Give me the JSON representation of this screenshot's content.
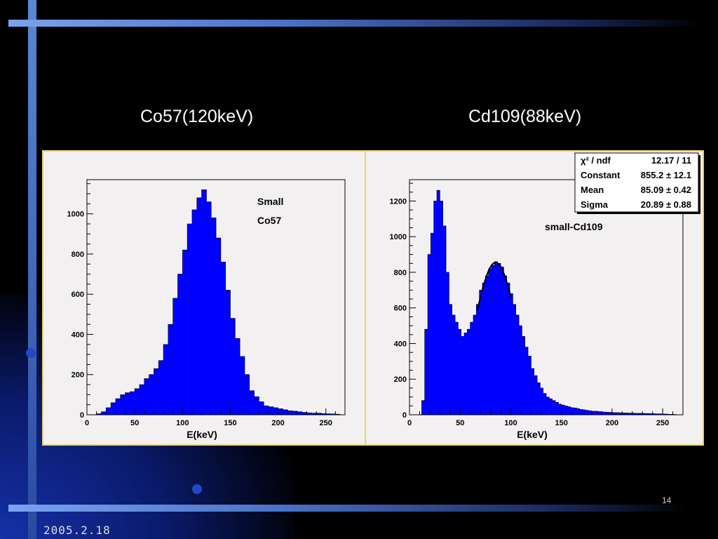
{
  "slide": {
    "page_number": "14",
    "date": "2005.2.18"
  },
  "colors": {
    "background": "#000000",
    "accent_bar": "#4a72c8",
    "histogram_fill": "#0000ff",
    "panel_border": "#e8d36a",
    "panel_bg": "#f3f0f2"
  },
  "chart_data": [
    {
      "type": "bar",
      "heading": "Co57(120keV)",
      "title": "",
      "annotation": [
        "Small",
        "Co57"
      ],
      "xlabel": "E(keV)",
      "ylabel": "",
      "xlim": [
        0,
        270
      ],
      "ylim": [
        0,
        1170
      ],
      "xticks": [
        0,
        50,
        100,
        150,
        200,
        250
      ],
      "yticks": [
        0,
        200,
        400,
        600,
        800,
        1000
      ],
      "bin_width": 5,
      "bins_x": [
        10,
        15,
        20,
        25,
        30,
        35,
        40,
        45,
        50,
        55,
        60,
        65,
        70,
        75,
        80,
        85,
        90,
        95,
        100,
        105,
        110,
        115,
        120,
        125,
        130,
        135,
        140,
        145,
        150,
        155,
        160,
        165,
        170,
        175,
        180,
        185,
        190,
        195,
        200,
        205,
        210,
        215,
        220,
        225,
        230,
        235,
        240,
        245,
        250,
        255,
        260
      ],
      "counts": [
        5,
        15,
        35,
        60,
        80,
        100,
        110,
        115,
        130,
        150,
        180,
        200,
        230,
        270,
        350,
        450,
        580,
        700,
        820,
        950,
        1020,
        1080,
        1120,
        1060,
        980,
        880,
        760,
        620,
        480,
        380,
        290,
        200,
        120,
        90,
        65,
        45,
        40,
        35,
        30,
        25,
        20,
        18,
        15,
        12,
        10,
        8,
        8,
        6,
        5,
        4,
        3
      ],
      "fit": null,
      "stats": null
    },
    {
      "type": "bar",
      "heading": "Cd109(88keV)",
      "title": "",
      "annotation": [
        "small-Cd109"
      ],
      "xlabel": "E(keV)",
      "ylabel": "",
      "xlim": [
        0,
        270
      ],
      "ylim": [
        0,
        1320
      ],
      "xticks": [
        0,
        50,
        100,
        150,
        200,
        250
      ],
      "yticks": [
        0,
        200,
        400,
        600,
        800,
        1000,
        1200
      ],
      "bin_width": 3,
      "bins_x": [
        12,
        15,
        18,
        21,
        24,
        27,
        30,
        33,
        36,
        39,
        42,
        45,
        48,
        51,
        54,
        57,
        60,
        63,
        66,
        69,
        72,
        75,
        78,
        81,
        84,
        87,
        90,
        93,
        96,
        99,
        102,
        105,
        108,
        111,
        114,
        117,
        120,
        123,
        126,
        129,
        132,
        135,
        138,
        141,
        144,
        147,
        150,
        153,
        156,
        159,
        162,
        165,
        168,
        171,
        174,
        177,
        180,
        183,
        186,
        189,
        192,
        195,
        198,
        201,
        204,
        207,
        210,
        213,
        216,
        219,
        222,
        225,
        228,
        231,
        234,
        237,
        240,
        243,
        246,
        249,
        252,
        255,
        258,
        261
      ],
      "counts": [
        80,
        480,
        900,
        1020,
        1200,
        1260,
        1200,
        1060,
        800,
        620,
        560,
        520,
        480,
        440,
        460,
        480,
        520,
        560,
        620,
        700,
        740,
        780,
        820,
        840,
        860,
        850,
        830,
        780,
        740,
        680,
        620,
        560,
        500,
        440,
        380,
        330,
        260,
        220,
        180,
        150,
        120,
        100,
        90,
        80,
        70,
        60,
        55,
        50,
        45,
        40,
        38,
        35,
        30,
        28,
        25,
        22,
        20,
        20,
        18,
        16,
        15,
        14,
        13,
        12,
        12,
        11,
        10,
        10,
        9,
        9,
        8,
        8,
        8,
        7,
        7,
        6,
        6,
        5,
        5,
        4,
        4,
        3,
        3,
        2
      ],
      "fit": {
        "type": "gaussian",
        "constant": 855.2,
        "mean": 85.09,
        "sigma": 20.89,
        "range": [
          67,
          100
        ]
      },
      "stats": [
        {
          "label": "χ² / ndf",
          "value": "12.17 / 11"
        },
        {
          "label": "Constant",
          "value": "855.2 ± 12.1"
        },
        {
          "label": "Mean",
          "value": "85.09 ± 0.42"
        },
        {
          "label": "Sigma",
          "value": "20.89 ± 0.88"
        }
      ]
    }
  ]
}
